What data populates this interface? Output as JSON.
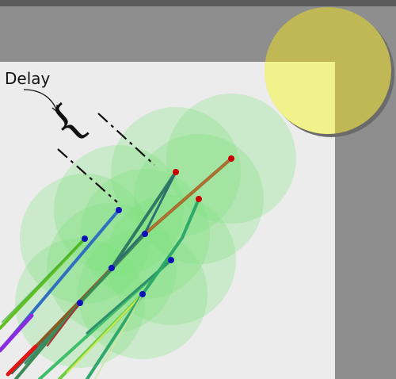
{
  "annotation": {
    "label": "Delay"
  },
  "colors": {
    "wall": "#8e8e8e",
    "floor": "#ececec",
    "light": "#f2f28c",
    "light_shadow": "#6b6b6b",
    "overlap_shade": "#c0b95a",
    "sensing_circle": "#7fe07f",
    "delayed_head": "#cc0000",
    "head": "#1010bb"
  },
  "agents": [
    {
      "head": "delayed",
      "trail_colors": [
        "#e01515",
        "#8a5a20",
        "#c05a2c"
      ]
    },
    {
      "head": "delayed",
      "trail_colors": [
        "#2f7a60",
        "#3a7c5a",
        "#3f8e70"
      ]
    },
    {
      "head": "delayed",
      "trail_colors": [
        "#b03030",
        "#a05a30",
        "#2fa96a"
      ]
    },
    {
      "head": "current",
      "trail_colors": [
        "#8a2be2",
        "#5a3ab8",
        "#2f6fbf"
      ]
    },
    {
      "head": "current",
      "trail_colors": [
        "#5fc020",
        "#3fae3a",
        "#7de05a"
      ]
    },
    {
      "head": "current",
      "trail_colors": [
        "#3fbf6a",
        "#2f8f6a",
        "#55cc55"
      ]
    },
    {
      "head": "current",
      "trail_colors": [
        "#d0e85a",
        "#6ad040",
        "#39b56a"
      ]
    },
    {
      "head": "current",
      "trail_colors": [
        "#d0e8a0",
        "#8fd060",
        "#2f8f60"
      ]
    },
    {
      "head": "current",
      "trail_colors": [
        "#b07030",
        "#3c8a55",
        "#2f7a60"
      ]
    }
  ]
}
